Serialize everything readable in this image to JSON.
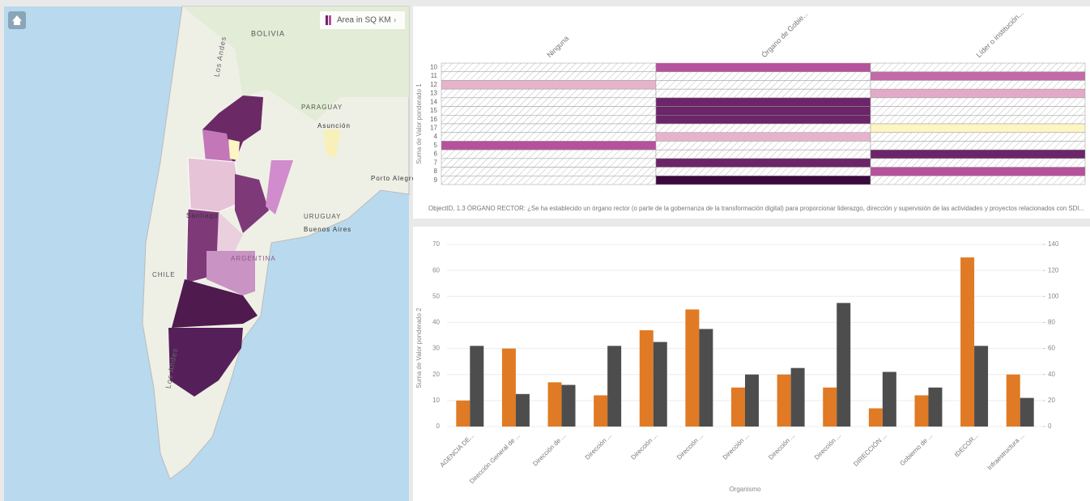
{
  "map": {
    "legend": "Area in SQ KM",
    "labels": [
      "BOLIVIA",
      "PARAGUAY",
      "Asunción",
      "Porto Alegre",
      "URUGUAY",
      "Buenos Aires",
      "ARGENTINA",
      "CHILE",
      "Santiago",
      "Los Andes",
      "Los Andes"
    ]
  },
  "chart_data": [
    {
      "type": "heatmap",
      "categories": [
        "Ninguna",
        "Órgano de Gobie...",
        "Líder o institución..."
      ],
      "rows": [
        "10",
        "11",
        "12",
        "13",
        "14",
        "15",
        "16",
        "17",
        "4",
        "5",
        "6",
        "7",
        "8",
        "9"
      ],
      "cells": [
        [
          null,
          "#b5529b",
          null
        ],
        [
          null,
          null,
          "#c36aa8"
        ],
        [
          "#e6b3cb",
          null,
          null
        ],
        [
          null,
          null,
          "#e2aac8"
        ],
        [
          null,
          "#6b2568",
          null
        ],
        [
          null,
          "#6b2568",
          null
        ],
        [
          null,
          "#6b2568",
          null
        ],
        [
          null,
          null,
          "#fdf6c3"
        ],
        [
          null,
          "#e6b3cb",
          null
        ],
        [
          "#b5529b",
          null,
          null
        ],
        [
          null,
          null,
          "#6b2568"
        ],
        [
          null,
          "#6b2568",
          null
        ],
        [
          null,
          null,
          "#b5529b"
        ],
        [
          null,
          "#3b0a3c",
          null
        ]
      ],
      "ylabel": "Suma de Valor ponderado 1",
      "footnote": "ObjectID, 1.3 ÓRGANO RECTOR: ¿Se ha establecido un órgano rector (o parte de la gobernanza de la transformación digital) para proporcionar liderazgo, dirección y supervisión de las actividades y proyectos relacionados con SDI..."
    },
    {
      "type": "bar",
      "categories": [
        "AGENCIA DE...",
        "Dirección General de ...",
        "Dirección de ...",
        "Dirección ...",
        "Dirección ...",
        "Dirección ...",
        "Dirección ...",
        "Dirección ...",
        "Dirección ...",
        "DIRECCIÓN ...",
        "Gobierno de ...",
        "IDECOR...",
        "Infraestructura ..."
      ],
      "series": [
        {
          "color": "#e07a24",
          "values": [
            10,
            30,
            17,
            12,
            37,
            45,
            15,
            20,
            15,
            7,
            12,
            65,
            20
          ]
        },
        {
          "color": "#4d4d4d",
          "axis": "y2",
          "values": [
            62,
            25,
            32,
            62,
            65,
            75,
            40,
            45,
            95,
            42,
            30,
            62,
            22
          ]
        }
      ],
      "ylim": [
        0,
        70
      ],
      "yticks": [
        0,
        10,
        20,
        30,
        40,
        50,
        60,
        70
      ],
      "y2lim": [
        0,
        140
      ],
      "y2ticks": [
        0,
        20,
        40,
        60,
        80,
        100,
        120,
        140
      ],
      "xlabel": "Organismo",
      "ylabel": "Suma de Valor ponderado 2",
      "grid": true
    }
  ]
}
